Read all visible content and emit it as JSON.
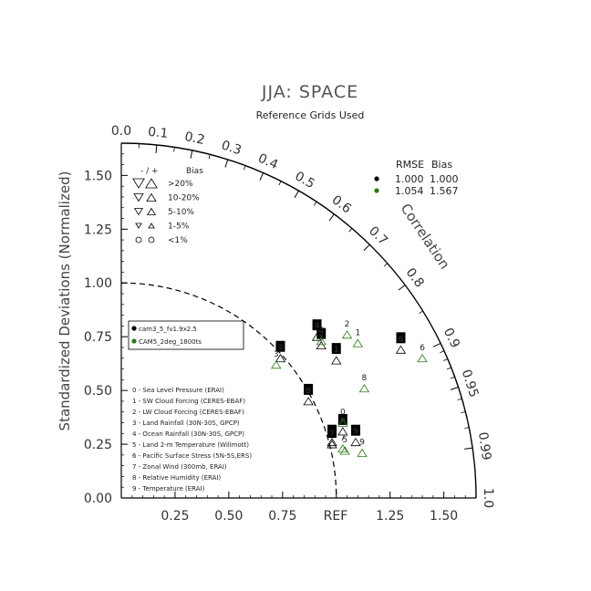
{
  "chart_data": {
    "type": "scatter",
    "subtype": "taylor-diagram",
    "title": "JJA: SPACE",
    "subtitle": "Reference Grids Used",
    "ylabel": "Standardized Deviations (Normalized)",
    "rlabel": "Correlation",
    "ref_label": "REF",
    "std_ticks": [
      "0.00",
      "0.25",
      "0.50",
      "0.75",
      "1.00",
      "1.25",
      "1.50"
    ],
    "x_std_ticks": [
      "0.25",
      "0.50",
      "0.75",
      "1.25",
      "1.50"
    ],
    "corr_ticks": [
      "0.0",
      "0.1",
      "0.2",
      "0.3",
      "0.4",
      "0.5",
      "0.6",
      "0.7",
      "0.8",
      "0.9",
      "0.95",
      "0.99",
      "1.0"
    ],
    "std_max": 1.65,
    "ref_std": 1.0,
    "series": [
      {
        "name": "cam3_5_fv1.9x2.5",
        "color": "#000000",
        "rmse": "1.000",
        "bias": "1.000",
        "points": [
          {
            "label": "0",
            "x": 1.03,
            "y": 0.31
          },
          {
            "label": "1",
            "x": 1.0,
            "y": 0.64
          },
          {
            "label": "2",
            "x": 0.93,
            "y": 0.71
          },
          {
            "label": "3",
            "x": 0.74,
            "y": 0.65
          },
          {
            "label": "4",
            "x": 0.91,
            "y": 0.75
          },
          {
            "label": "5",
            "x": 0.98,
            "y": 0.26
          },
          {
            "label": "6",
            "x": 1.3,
            "y": 0.69
          },
          {
            "label": "7",
            "x": 0.98,
            "y": 0.25
          },
          {
            "label": "8",
            "x": 0.87,
            "y": 0.45
          },
          {
            "label": "9",
            "x": 1.09,
            "y": 0.26
          }
        ]
      },
      {
        "name": "CAM5_2deg_1800ts",
        "color": "#2a7a14",
        "rmse": "1.054",
        "bias": "1.567",
        "points": [
          {
            "label": "0",
            "x": 1.03,
            "y": 0.35
          },
          {
            "label": "1",
            "x": 1.1,
            "y": 0.72
          },
          {
            "label": "2",
            "x": 1.05,
            "y": 0.76
          },
          {
            "label": "3",
            "x": 0.72,
            "y": 0.62
          },
          {
            "label": "4",
            "x": 0.93,
            "y": 0.73
          },
          {
            "label": "5",
            "x": 1.04,
            "y": 0.22
          },
          {
            "label": "6",
            "x": 1.4,
            "y": 0.65
          },
          {
            "label": "7",
            "x": 1.03,
            "y": 0.23
          },
          {
            "label": "8",
            "x": 1.13,
            "y": 0.51
          },
          {
            "label": "9",
            "x": 1.12,
            "y": 0.21
          }
        ]
      }
    ],
    "bias_legend": {
      "header_sign": "-  /  +",
      "header_bias": "Bias",
      "rows": [
        ">20%",
        "10-20%",
        "5-10%",
        "1-5%",
        "<1%"
      ]
    },
    "case_legend": {
      "rmse_header": "RMSE",
      "bias_header": "Bias"
    },
    "variables": [
      "0 - Sea Level Pressure (ERAI)",
      "1 - SW Cloud Forcing (CERES-EBAF)",
      "2 - LW Cloud Forcing (CERES-EBAF)",
      "3 - Land Rainfall (30N-30S, GPCP)",
      "4 - Ocean Rainfall (30N-30S, GPCP)",
      "5 - Land 2-m Temperature (Willmott)",
      "6 - Pacific Surface Stress (5N-5S,ERS)",
      "7 - Zonal Wind (300mb, ERAI)",
      "8 - Relative Humidity (ERAI)",
      "9 - Temperature (ERAI)"
    ]
  }
}
